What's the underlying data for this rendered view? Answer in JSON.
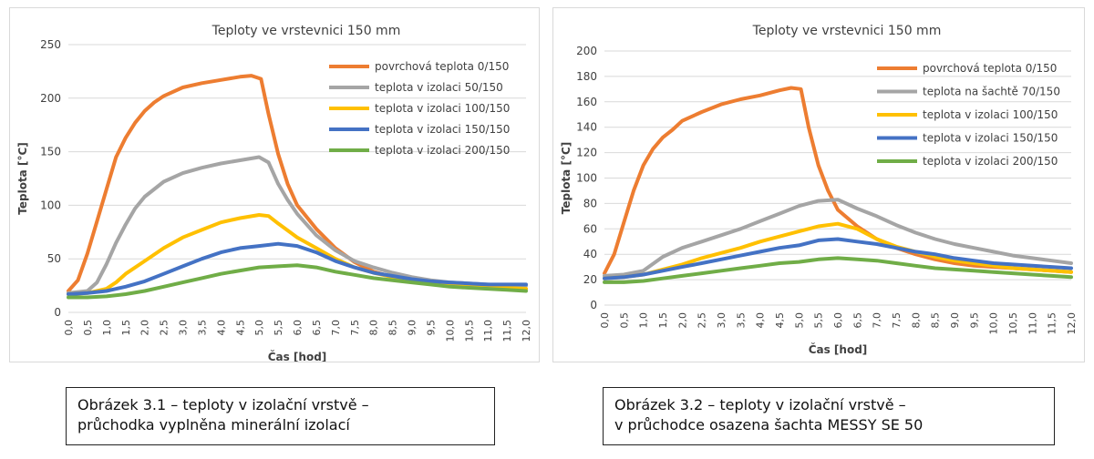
{
  "charts": [
    {
      "type": "line",
      "title": "Teploty ve vrstevnici 150 mm",
      "xlabel": "Čas [hod]",
      "ylabel": "Teplota [°C]",
      "ylim": [
        0,
        250
      ],
      "yticks": [
        0,
        50,
        100,
        150,
        200,
        250
      ],
      "xlim": [
        0,
        12
      ],
      "xticks": [
        "0,0",
        "0,5",
        "1,0",
        "1,5",
        "2,0",
        "2,5",
        "3,0",
        "3,5",
        "4,0",
        "4,5",
        "5,0",
        "5,5",
        "6,0",
        "6,5",
        "7,0",
        "7,5",
        "8,0",
        "8,5",
        "9,0",
        "9,5",
        "10,0",
        "10,5",
        "11,0",
        "11,5",
        "12,0"
      ],
      "grid": true,
      "legend": "top-right",
      "series": [
        {
          "name": "povrchová teplota 0/150",
          "color": "#ed7d31",
          "x": [
            0,
            0.25,
            0.5,
            0.75,
            1,
            1.25,
            1.5,
            1.75,
            2,
            2.25,
            2.5,
            3,
            3.5,
            4,
            4.5,
            4.8,
            5.05,
            5.25,
            5.5,
            5.75,
            6,
            6.5,
            7,
            7.5,
            8,
            8.5,
            9,
            9.5,
            10,
            10.5,
            11,
            11.5,
            12
          ],
          "y": [
            20,
            30,
            55,
            85,
            115,
            145,
            163,
            177,
            188,
            196,
            202,
            210,
            214,
            217,
            220,
            221,
            218,
            185,
            148,
            120,
            100,
            78,
            60,
            47,
            38,
            33,
            30,
            28,
            26,
            25,
            24,
            23,
            22
          ]
        },
        {
          "name": "teplota v izolaci 50/150",
          "color": "#a5a5a5",
          "x": [
            0,
            0.5,
            0.75,
            1,
            1.25,
            1.5,
            1.75,
            2,
            2.5,
            3,
            3.5,
            4,
            4.5,
            5,
            5.25,
            5.5,
            5.75,
            6,
            6.5,
            7,
            7.5,
            8,
            8.5,
            9,
            9.5,
            10,
            10.5,
            11,
            11.5,
            12
          ],
          "y": [
            18,
            20,
            28,
            45,
            65,
            82,
            97,
            108,
            122,
            130,
            135,
            139,
            142,
            145,
            140,
            120,
            105,
            92,
            72,
            58,
            48,
            42,
            37,
            33,
            30,
            28,
            27,
            26,
            25,
            25
          ]
        },
        {
          "name": "teplota v izolaci 100/150",
          "color": "#ffc000",
          "x": [
            0,
            0.5,
            1,
            1.25,
            1.5,
            2,
            2.5,
            3,
            3.5,
            4,
            4.5,
            5,
            5.25,
            5.5,
            6,
            6.5,
            7,
            7.5,
            8,
            8.5,
            9,
            9.5,
            10,
            10.5,
            11,
            11.5,
            12
          ],
          "y": [
            17,
            18,
            22,
            28,
            36,
            48,
            60,
            70,
            77,
            84,
            88,
            91,
            90,
            83,
            70,
            60,
            50,
            42,
            37,
            33,
            30,
            28,
            26,
            25,
            24,
            23,
            22
          ]
        },
        {
          "name": "teplota v izolaci 150/150",
          "color": "#4472c4",
          "x": [
            0,
            0.5,
            1,
            1.5,
            2,
            2.5,
            3,
            3.5,
            4,
            4.5,
            5,
            5.5,
            6,
            6.5,
            7,
            7.5,
            8,
            8.5,
            9,
            9.5,
            10,
            10.5,
            11,
            11.5,
            12
          ],
          "y": [
            17,
            18,
            20,
            24,
            29,
            36,
            43,
            50,
            56,
            60,
            62,
            64,
            62,
            56,
            48,
            42,
            37,
            34,
            31,
            29,
            28,
            27,
            26,
            26,
            26
          ]
        },
        {
          "name": "teplota v izolaci 200/150",
          "color": "#70ad47",
          "x": [
            0,
            0.5,
            1,
            1.5,
            2,
            2.5,
            3,
            3.5,
            4,
            4.5,
            5,
            5.5,
            6,
            6.5,
            7,
            7.5,
            8,
            8.5,
            9,
            9.5,
            10,
            10.5,
            11,
            11.5,
            12
          ],
          "y": [
            14,
            14,
            15,
            17,
            20,
            24,
            28,
            32,
            36,
            39,
            42,
            43,
            44,
            42,
            38,
            35,
            32,
            30,
            28,
            26,
            24,
            23,
            22,
            21,
            20
          ]
        }
      ]
    },
    {
      "type": "line",
      "title": "Teploty ve vrstevnici 150 mm",
      "xlabel": "Čas [hod]",
      "ylabel": "Teplota [°C]",
      "ylim": [
        0,
        200
      ],
      "yticks": [
        0,
        20,
        40,
        60,
        80,
        100,
        120,
        140,
        160,
        180,
        200
      ],
      "xlim": [
        0,
        12
      ],
      "xticks": [
        "0,0",
        "0,5",
        "1,0",
        "1,5",
        "2,0",
        "2,5",
        "3,0",
        "3,5",
        "4,0",
        "4,5",
        "5,0",
        "5,5",
        "6,0",
        "6,5",
        "7,0",
        "7,5",
        "8,0",
        "8,5",
        "9,0",
        "9,5",
        "10,0",
        "10,5",
        "11,0",
        "11,5",
        "12,0"
      ],
      "grid": true,
      "legend": "top-right",
      "series": [
        {
          "name": "povrchová teplota 0/150",
          "color": "#ed7d31",
          "x": [
            0,
            0.25,
            0.5,
            0.75,
            1,
            1.25,
            1.5,
            1.75,
            2,
            2.5,
            3,
            3.5,
            4,
            4.5,
            4.8,
            5.05,
            5.25,
            5.5,
            5.75,
            6,
            6.5,
            7,
            7.5,
            8,
            8.5,
            9,
            9.5,
            10,
            10.5,
            11,
            11.5,
            12
          ],
          "y": [
            25,
            40,
            65,
            90,
            110,
            123,
            132,
            138,
            145,
            152,
            158,
            162,
            165,
            169,
            171,
            170,
            140,
            110,
            90,
            75,
            62,
            52,
            45,
            40,
            36,
            33,
            31,
            30,
            29,
            28,
            27,
            26
          ]
        },
        {
          "name": "teplota na šachtě 70/150",
          "color": "#a5a5a5",
          "x": [
            0,
            0.5,
            1,
            1.5,
            2,
            2.5,
            3,
            3.5,
            4,
            4.5,
            5,
            5.5,
            6,
            6.5,
            7,
            7.5,
            8,
            8.5,
            9,
            9.5,
            10,
            10.5,
            11,
            11.5,
            12
          ],
          "y": [
            23,
            24,
            27,
            38,
            45,
            50,
            55,
            60,
            66,
            72,
            78,
            82,
            83,
            76,
            70,
            63,
            57,
            52,
            48,
            45,
            42,
            39,
            37,
            35,
            33
          ]
        },
        {
          "name": "teplota v izolaci 100/150",
          "color": "#ffc000",
          "x": [
            0,
            0.5,
            1,
            1.5,
            2,
            2.5,
            3,
            3.5,
            4,
            4.5,
            5,
            5.5,
            6,
            6.5,
            7,
            7.5,
            8,
            8.5,
            9,
            9.5,
            10,
            10.5,
            11,
            11.5,
            12
          ],
          "y": [
            21,
            22,
            24,
            28,
            32,
            37,
            41,
            45,
            50,
            54,
            58,
            62,
            64,
            60,
            52,
            46,
            42,
            38,
            35,
            33,
            31,
            29,
            28,
            27,
            26
          ]
        },
        {
          "name": "teplota v izolaci 150/150",
          "color": "#4472c4",
          "x": [
            0,
            0.5,
            1,
            1.5,
            2,
            2.5,
            3,
            3.5,
            4,
            4.5,
            5,
            5.5,
            6,
            6.5,
            7,
            7.5,
            8,
            8.5,
            9,
            9.5,
            10,
            10.5,
            11,
            11.5,
            12
          ],
          "y": [
            21,
            22,
            24,
            27,
            30,
            33,
            36,
            39,
            42,
            45,
            47,
            51,
            52,
            50,
            48,
            45,
            42,
            40,
            37,
            35,
            33,
            32,
            31,
            30,
            29
          ]
        },
        {
          "name": "teplota v izolaci 200/150",
          "color": "#70ad47",
          "x": [
            0,
            0.5,
            1,
            1.5,
            2,
            2.5,
            3,
            3.5,
            4,
            4.5,
            5,
            5.5,
            6,
            6.5,
            7,
            7.5,
            8,
            8.5,
            9,
            9.5,
            10,
            10.5,
            11,
            11.5,
            12
          ],
          "y": [
            18,
            18,
            19,
            21,
            23,
            25,
            27,
            29,
            31,
            33,
            34,
            36,
            37,
            36,
            35,
            33,
            31,
            29,
            28,
            27,
            26,
            25,
            24,
            23,
            22
          ]
        }
      ]
    }
  ],
  "captions": [
    {
      "line1": "Obrázek 3.1 – teploty v izolační vrstvě –",
      "line2": "průchodka vyplněna minerální izolací"
    },
    {
      "line1": "Obrázek 3.2 – teploty v izolační vrstvě –",
      "line2": "v průchodce osazena šachta MESSY SE 50"
    }
  ]
}
